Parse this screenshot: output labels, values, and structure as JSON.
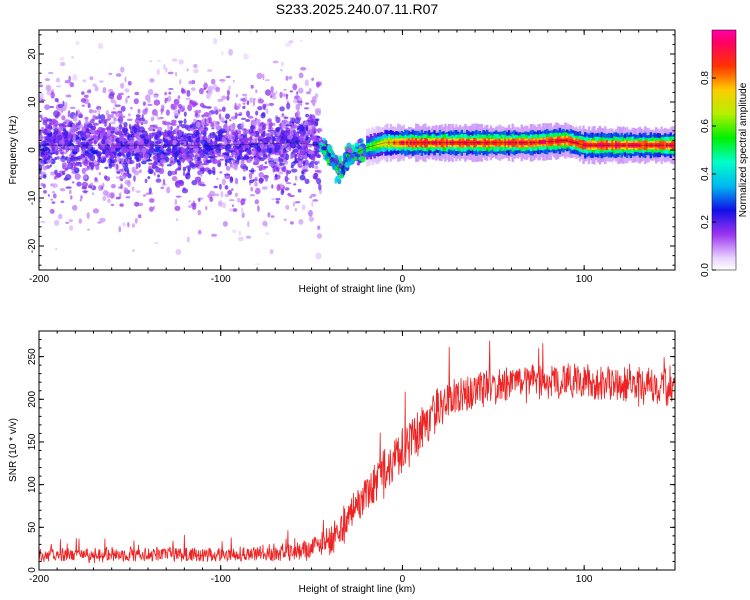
{
  "title": "S233.2025.240.07.11.R07",
  "colors": {
    "snr_line": "#ee2222",
    "axis": "#000000",
    "background": "#ffffff"
  },
  "chart_data": [
    {
      "type": "heatmap",
      "title": "S233.2025.240.07.11.R07",
      "xlabel": "Height of straight line (km)",
      "ylabel": "Frequency (Hz)",
      "xlim": [
        -200,
        150
      ],
      "ylim": [
        -25,
        25
      ],
      "xticks": [
        -200,
        -100,
        0,
        100
      ],
      "xtick_labels": [
        "-200",
        "-100",
        "0",
        "100"
      ],
      "yticks": [
        -20,
        -10,
        0,
        10,
        20
      ],
      "ytick_labels": [
        "-20",
        "-10",
        "0",
        "10",
        "20"
      ],
      "colorbar": {
        "label": "Normalized spectral amplitude",
        "range": [
          0,
          1
        ],
        "ticks": [
          0.0,
          0.2,
          0.4,
          0.6,
          0.8
        ],
        "tick_labels": [
          "0.0",
          "0.2",
          "0.4",
          "0.6",
          "0.8"
        ],
        "colormap": "rainbow (white-violet-blue-cyan-green-yellow-red-magenta)"
      },
      "ridge": {
        "description": "peak frequency (Hz) vs height (km)",
        "x": [
          -200,
          -150,
          -100,
          -60,
          -45,
          -40,
          -36,
          -33,
          -30,
          -25,
          -20,
          -10,
          0,
          10,
          30,
          50,
          70,
          90,
          95,
          100,
          120,
          150
        ],
        "y": [
          1,
          1,
          1,
          1.5,
          1,
          -1,
          -3.5,
          -4,
          -1,
          -0.5,
          0.5,
          1.5,
          1.5,
          1.5,
          1.5,
          1.5,
          1.5,
          2,
          1.5,
          1,
          1,
          1
        ]
      },
      "regions": [
        {
          "x_range": [
            -200,
            -45
          ],
          "description": "scattered noise, broad frequency spread",
          "max_amplitude": 0.25
        },
        {
          "x_range": [
            -45,
            -20
          ],
          "description": "transition dip",
          "max_amplitude": 0.45
        },
        {
          "x_range": [
            -20,
            150
          ],
          "description": "coherent narrow signal",
          "max_amplitude": 1.0
        }
      ]
    },
    {
      "type": "line",
      "xlabel": "Height of straight line (km)",
      "ylabel": "SNR (10 * v/v)",
      "xlim": [
        -200,
        150
      ],
      "ylim": [
        0,
        280
      ],
      "xticks": [
        -200,
        -100,
        0,
        100
      ],
      "xtick_labels": [
        "-200",
        "-100",
        "0",
        "100"
      ],
      "yticks": [
        0,
        50,
        100,
        150,
        200,
        250
      ],
      "ytick_labels": [
        "0",
        "50",
        "100",
        "150",
        "200",
        "250"
      ],
      "series": [
        {
          "name": "SNR",
          "trend_x": [
            -200,
            -150,
            -100,
            -75,
            -60,
            -50,
            -45,
            -40,
            -35,
            -30,
            -20,
            -10,
            0,
            10,
            20,
            30,
            40,
            60,
            80,
            100,
            120,
            140,
            150
          ],
          "trend_y": [
            18,
            18,
            18,
            20,
            22,
            25,
            30,
            35,
            45,
            60,
            90,
            115,
            140,
            165,
            190,
            205,
            212,
            218,
            220,
            220,
            218,
            215,
            215
          ],
          "noise_amplitude": [
            12,
            12,
            12,
            14,
            16,
            18,
            20,
            24,
            28,
            32,
            36,
            40,
            42,
            40,
            36,
            34,
            32,
            30,
            30,
            30,
            30,
            30,
            30
          ]
        }
      ]
    }
  ]
}
